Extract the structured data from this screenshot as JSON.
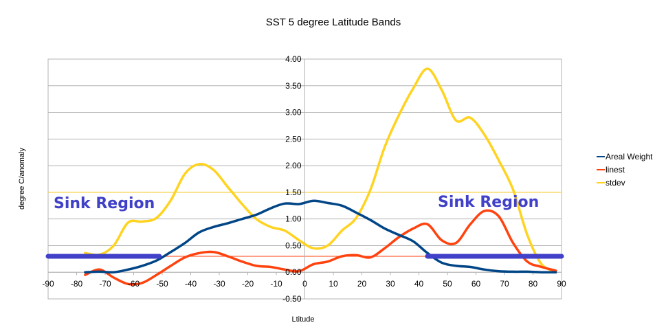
{
  "chart_data": {
    "type": "line",
    "title": "SST 5 degree Latitude Bands",
    "xlabel": "Ltitude",
    "ylabel": "degree C/anomaly",
    "xlim": [
      -90,
      90
    ],
    "ylim": [
      -0.5,
      4.0
    ],
    "xticks": [
      "-90",
      "-80",
      "-70",
      "-60",
      "-50",
      "-40",
      "-30",
      "-20",
      "-10",
      "0",
      "10",
      "20",
      "30",
      "40",
      "50",
      "60",
      "70",
      "80",
      "90"
    ],
    "yticks": [
      "-0.50",
      "0.00",
      "0.50",
      "1.00",
      "1.50",
      "2.00",
      "2.50",
      "3.00",
      "3.50",
      "4.00"
    ],
    "grid": true,
    "legend_position": "right",
    "series": [
      {
        "name": "Areal Weight",
        "color": "#004586",
        "x": [
          -77,
          -72,
          -67,
          -62,
          -57,
          -52,
          -47,
          -42,
          -37,
          -32,
          -27,
          -22,
          -17,
          -12,
          -7,
          -2,
          3,
          8,
          13,
          18,
          23,
          28,
          33,
          38,
          43,
          48,
          53,
          58,
          63,
          68,
          73,
          78,
          83,
          88
        ],
        "y": [
          0.0,
          0.01,
          0.0,
          0.05,
          0.12,
          0.22,
          0.38,
          0.55,
          0.75,
          0.85,
          0.92,
          1.0,
          1.08,
          1.2,
          1.29,
          1.28,
          1.34,
          1.3,
          1.25,
          1.12,
          0.98,
          0.82,
          0.7,
          0.58,
          0.36,
          0.18,
          0.12,
          0.1,
          0.05,
          0.02,
          0.01,
          0.01,
          0.0,
          0.0
        ]
      },
      {
        "name": "linest",
        "color": "#ff420e",
        "x": [
          -77,
          -72,
          -67,
          -62,
          -57,
          -52,
          -47,
          -42,
          -37,
          -32,
          -27,
          -22,
          -17,
          -12,
          -7,
          -2,
          3,
          8,
          13,
          18,
          23,
          28,
          33,
          38,
          43,
          48,
          53,
          58,
          63,
          68,
          73,
          78,
          83,
          88
        ],
        "y": [
          -0.05,
          0.05,
          -0.1,
          -0.22,
          -0.2,
          -0.05,
          0.12,
          0.28,
          0.36,
          0.38,
          0.3,
          0.2,
          0.12,
          0.1,
          0.05,
          0.02,
          0.15,
          0.2,
          0.3,
          0.32,
          0.28,
          0.45,
          0.66,
          0.82,
          0.9,
          0.6,
          0.55,
          0.9,
          1.15,
          1.05,
          0.55,
          0.2,
          0.1,
          0.03
        ]
      },
      {
        "name": "stdev",
        "color": "#ffd320",
        "x": [
          -77,
          -72,
          -67,
          -62,
          -57,
          -52,
          -47,
          -42,
          -37,
          -32,
          -27,
          -22,
          -17,
          -12,
          -7,
          -2,
          3,
          8,
          13,
          18,
          23,
          28,
          33,
          38,
          43,
          48,
          53,
          58,
          63,
          68,
          73,
          78,
          83,
          88
        ],
        "y": [
          0.36,
          0.33,
          0.5,
          0.93,
          0.95,
          1.02,
          1.35,
          1.85,
          2.03,
          1.92,
          1.6,
          1.28,
          1.0,
          0.85,
          0.78,
          0.6,
          0.45,
          0.5,
          0.78,
          1.02,
          1.55,
          2.35,
          2.95,
          3.45,
          3.82,
          3.42,
          2.85,
          2.9,
          2.58,
          2.1,
          1.55,
          0.7,
          0.15,
          0.02
        ]
      }
    ],
    "reference_lines": [
      {
        "y": 1.5,
        "color": "#ffd320"
      },
      {
        "y": 0.3,
        "color": "#ff420e"
      }
    ],
    "highlight_bands": [
      {
        "x_start": -90,
        "x_end": -51,
        "y": 0.3,
        "color": "#4040c8"
      },
      {
        "x_start": 43,
        "x_end": 90,
        "y": 0.3,
        "color": "#4040c8"
      }
    ],
    "annotations": [
      {
        "text": "Sink Region",
        "color": "#4040c8"
      },
      {
        "text": "Sink Region",
        "color": "#4040c8"
      }
    ]
  }
}
